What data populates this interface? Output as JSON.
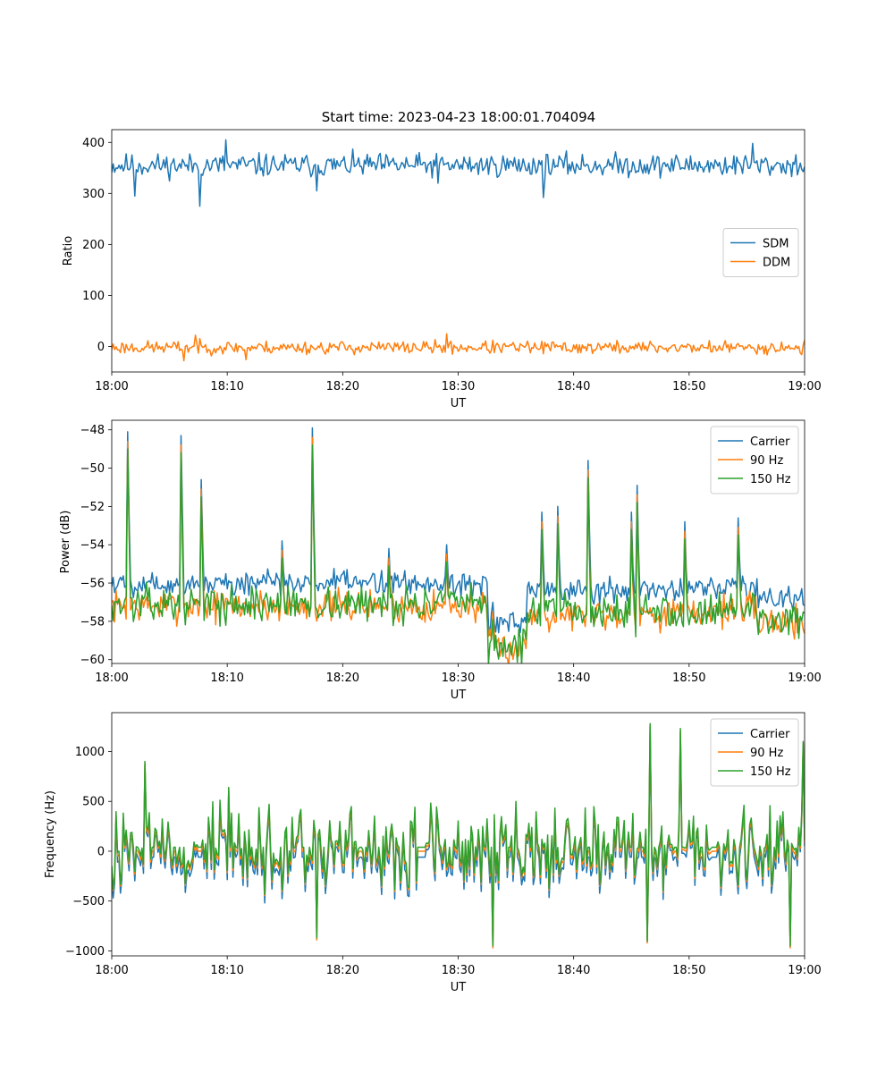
{
  "figure_title": "Start time: 2023-04-23 18:00:01.704094",
  "colors": {
    "blue": "#1f77b4",
    "orange": "#ff7f0e",
    "green": "#2ca02c"
  },
  "chart_data": [
    {
      "type": "line",
      "title": "Start time: 2023-04-23 18:00:01.704094",
      "xlabel": "UT",
      "ylabel": "Ratio",
      "xlim": [
        "18:00",
        "19:00"
      ],
      "x_ticks": [
        "18:00",
        "18:10",
        "18:20",
        "18:30",
        "18:40",
        "18:50",
        "19:00"
      ],
      "ylim": [
        -50,
        425
      ],
      "y_ticks": [
        0,
        100,
        200,
        300,
        400
      ],
      "legend_position": "center-right",
      "grid": false,
      "series": [
        {
          "name": "SDM",
          "color": "#1f77b4",
          "style": "noisy",
          "base": 355,
          "noise": 16,
          "seed": 11,
          "spikes": [
            [
              7.6,
              275
            ],
            [
              9.9,
              405
            ],
            [
              17.7,
              305
            ],
            [
              37.4,
              292
            ],
            [
              55.5,
              398
            ],
            [
              2.0,
              295
            ],
            [
              28.2,
              320
            ]
          ]
        },
        {
          "name": "DDM",
          "color": "#ff7f0e",
          "style": "noisy",
          "base": -2,
          "noise": 9,
          "seed": 23,
          "spikes": [
            [
              6.2,
              -28
            ],
            [
              7.3,
              22
            ],
            [
              11.6,
              -26
            ],
            [
              29.0,
              25
            ],
            [
              59.8,
              -16
            ]
          ]
        }
      ]
    },
    {
      "type": "line",
      "xlabel": "UT",
      "ylabel": "Power (dB)",
      "xlim": [
        "18:00",
        "19:00"
      ],
      "x_ticks": [
        "18:00",
        "18:10",
        "18:20",
        "18:30",
        "18:40",
        "18:50",
        "19:00"
      ],
      "ylim": [
        -60.2,
        -47.5
      ],
      "y_ticks": [
        -60,
        -58,
        -56,
        -54,
        -52,
        -50,
        -48
      ],
      "legend_position": "top-right",
      "grid": false,
      "series": [
        {
          "name": "Carrier",
          "color": "#1f77b4",
          "style": "power",
          "offset": 0,
          "noise": 0.45,
          "seed": 5
        },
        {
          "name": "90 Hz",
          "color": "#ff7f0e",
          "style": "power",
          "offset": -1.2,
          "noise": 0.55,
          "seed": 7
        },
        {
          "name": "150 Hz",
          "color": "#2ca02c",
          "style": "power",
          "offset": -1.1,
          "noise": 0.6,
          "seed": 13
        }
      ],
      "power_levels": [
        [
          0,
          -56.0
        ],
        [
          32.6,
          -58.2
        ],
        [
          36.0,
          -56.4
        ],
        [
          51.5,
          -56.2
        ],
        [
          56.0,
          -56.8
        ],
        [
          60,
          -57.0
        ]
      ],
      "power_spikes": [
        [
          1.4,
          -48.1
        ],
        [
          6.0,
          -48.3
        ],
        [
          7.8,
          -50.6
        ],
        [
          17.4,
          -47.9
        ],
        [
          33.0,
          -57.0
        ],
        [
          37.2,
          -52.3
        ],
        [
          38.6,
          -52.0
        ],
        [
          41.3,
          -49.6
        ],
        [
          45.0,
          -52.3
        ],
        [
          45.5,
          -50.9
        ],
        [
          49.6,
          -52.8
        ],
        [
          54.2,
          -52.6
        ],
        [
          14.8,
          -53.8
        ],
        [
          24.0,
          -54.2
        ],
        [
          29.0,
          -54.0
        ]
      ]
    },
    {
      "type": "line",
      "xlabel": "UT",
      "ylabel": "Frequency (Hz)",
      "xlim": [
        "18:00",
        "19:00"
      ],
      "x_ticks": [
        "18:00",
        "18:10",
        "18:20",
        "18:30",
        "18:40",
        "18:50",
        "19:00"
      ],
      "ylim": [
        -1050,
        1390
      ],
      "y_ticks": [
        -1000,
        -500,
        0,
        500,
        1000
      ],
      "legend_position": "top-right",
      "grid": false,
      "series": [
        {
          "name": "Carrier",
          "color": "#1f77b4",
          "style": "freq",
          "offset": -60,
          "noise": 340,
          "seed": 31
        },
        {
          "name": "90 Hz",
          "color": "#ff7f0e",
          "style": "freq",
          "offset": 0,
          "noise": 330,
          "seed": 31
        },
        {
          "name": "150 Hz",
          "color": "#2ca02c",
          "style": "freq",
          "offset": 40,
          "noise": 350,
          "seed": 31
        }
      ],
      "freq_spikes": [
        [
          46.6,
          1280
        ],
        [
          49.2,
          1230
        ],
        [
          33.0,
          -950
        ],
        [
          46.4,
          -900
        ],
        [
          59.9,
          1100
        ],
        [
          2.9,
          900
        ],
        [
          58.8,
          -950
        ],
        [
          10.1,
          640
        ],
        [
          17.8,
          -870
        ]
      ]
    }
  ]
}
